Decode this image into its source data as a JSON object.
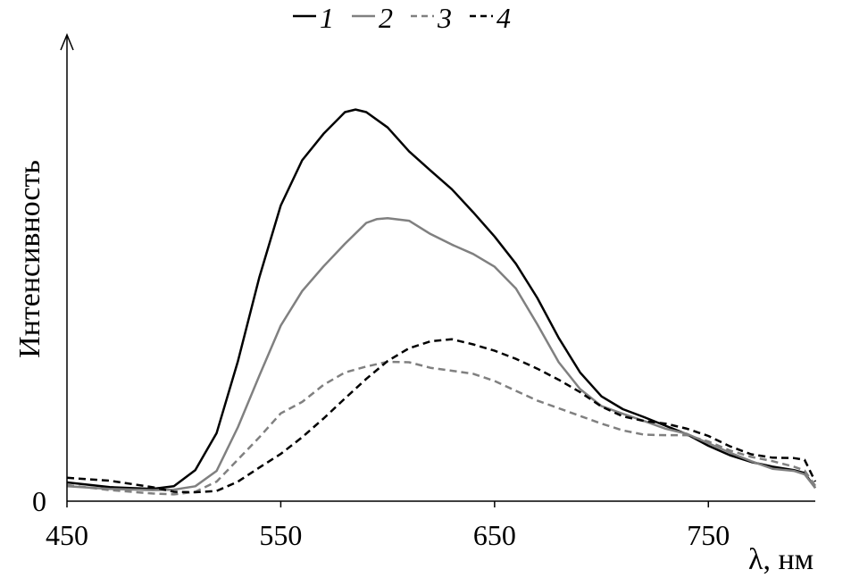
{
  "chart_data": {
    "type": "line",
    "xlabel": "λ, нм",
    "ylabel": "Интенсивность",
    "xlim": [
      450,
      800
    ],
    "ylim": [
      0,
      100
    ],
    "x_ticks": [
      450,
      550,
      650,
      750
    ],
    "x_tick_labels": [
      "450",
      "550",
      "650",
      "750"
    ],
    "y_ticks": [
      0
    ],
    "y_tick_labels": [
      "0"
    ],
    "legend_position": "top-center",
    "grid": false,
    "series": [
      {
        "name": "1",
        "color": "#000000",
        "dash": "solid",
        "x": [
          450,
          470,
          490,
          500,
          510,
          520,
          530,
          540,
          550,
          560,
          570,
          580,
          585,
          590,
          600,
          610,
          620,
          630,
          640,
          650,
          660,
          670,
          680,
          690,
          700,
          710,
          720,
          730,
          740,
          750,
          760,
          770,
          780,
          790,
          795,
          800
        ],
        "y": [
          4.4,
          3.3,
          2.9,
          3.5,
          7.3,
          16.0,
          32.9,
          52.6,
          69.4,
          80.0,
          86.2,
          91.3,
          91.9,
          91.3,
          87.7,
          82.1,
          77.6,
          73.2,
          67.8,
          62.1,
          55.7,
          47.7,
          38.3,
          30.2,
          24.6,
          21.6,
          19.7,
          17.7,
          15.7,
          13.0,
          10.8,
          9.2,
          8.1,
          7.3,
          6.6,
          3.1
        ]
      },
      {
        "name": "2",
        "color": "#808080",
        "dash": "solid",
        "x": [
          450,
          470,
          490,
          500,
          510,
          520,
          530,
          540,
          550,
          560,
          570,
          580,
          590,
          595,
          600,
          610,
          620,
          630,
          640,
          650,
          660,
          670,
          680,
          690,
          700,
          710,
          720,
          730,
          740,
          750,
          760,
          770,
          780,
          790,
          795,
          800
        ],
        "y": [
          3.5,
          2.9,
          2.6,
          2.7,
          3.5,
          7.1,
          17.4,
          29.5,
          41.2,
          49.3,
          55.1,
          60.4,
          65.3,
          66.2,
          66.4,
          65.8,
          62.7,
          60.2,
          58.0,
          55.0,
          49.9,
          41.5,
          32.6,
          26.3,
          22.3,
          20.5,
          18.8,
          17.0,
          15.8,
          13.6,
          11.4,
          9.4,
          7.6,
          7.1,
          6.3,
          3.1
        ]
      },
      {
        "name": "3",
        "color": "#808080",
        "dash": "dashed",
        "x": [
          450,
          470,
          490,
          500,
          510,
          520,
          530,
          540,
          550,
          560,
          570,
          580,
          590,
          600,
          610,
          620,
          630,
          640,
          650,
          660,
          670,
          680,
          690,
          700,
          710,
          720,
          730,
          740,
          750,
          760,
          770,
          780,
          790,
          795,
          800
        ],
        "y": [
          3.8,
          2.6,
          1.8,
          1.6,
          2.2,
          4.6,
          9.8,
          15.0,
          20.6,
          23.3,
          27.3,
          30.2,
          31.6,
          32.7,
          32.6,
          31.3,
          30.6,
          29.9,
          28.2,
          25.9,
          23.6,
          21.8,
          20.0,
          18.2,
          16.6,
          15.6,
          15.5,
          15.5,
          14.0,
          11.9,
          10.4,
          9.4,
          8.1,
          7.2,
          3.6
        ]
      },
      {
        "name": "4",
        "color": "#000000",
        "dash": "dashed",
        "x": [
          450,
          470,
          490,
          500,
          510,
          520,
          530,
          540,
          550,
          560,
          570,
          580,
          590,
          600,
          610,
          620,
          630,
          640,
          650,
          660,
          670,
          680,
          690,
          700,
          710,
          720,
          730,
          740,
          750,
          760,
          770,
          780,
          790,
          795,
          800
        ],
        "y": [
          5.5,
          4.8,
          3.3,
          2.2,
          2.1,
          2.4,
          4.6,
          7.9,
          11.1,
          15.0,
          19.4,
          24.1,
          28.7,
          32.9,
          35.9,
          37.5,
          38.0,
          36.8,
          35.3,
          33.4,
          31.1,
          28.5,
          25.6,
          22.2,
          19.9,
          18.8,
          18.2,
          17.0,
          15.3,
          12.9,
          11.0,
          10.2,
          10.1,
          9.7,
          4.6
        ]
      }
    ]
  }
}
